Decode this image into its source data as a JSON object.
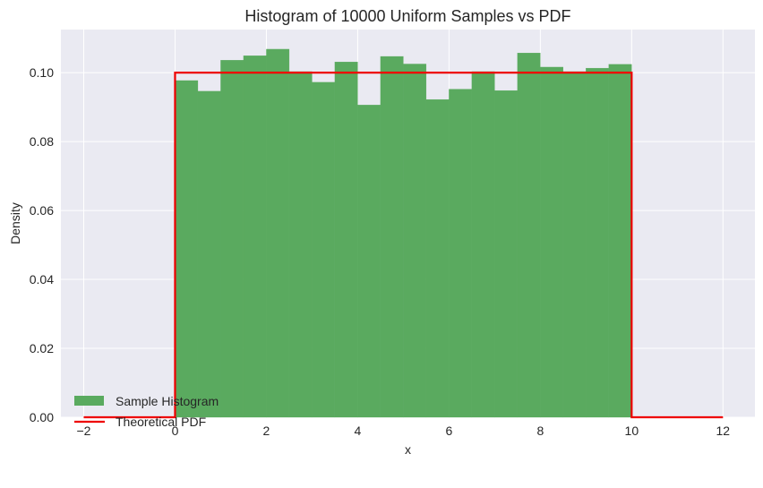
{
  "chart_data": {
    "type": "bar",
    "title": "Histogram of 10000 Uniform Samples vs PDF",
    "xlabel": "x",
    "ylabel": "Density",
    "xlim": [
      -2.5,
      12.7
    ],
    "ylim": [
      0.0,
      0.1125
    ],
    "xticks": [
      -2,
      0,
      2,
      4,
      6,
      8,
      10,
      12
    ],
    "xtick_labels": [
      "−2",
      "0",
      "2",
      "4",
      "6",
      "8",
      "10",
      "12"
    ],
    "yticks": [
      0.0,
      0.02,
      0.04,
      0.06,
      0.08,
      0.1
    ],
    "ytick_labels": [
      "0.00",
      "0.02",
      "0.04",
      "0.06",
      "0.08",
      "0.10"
    ],
    "grid": true,
    "legend_position": "lower left",
    "series": [
      {
        "name": "Sample Histogram",
        "type": "histogram",
        "color": "#4da64d",
        "alpha": 0.9,
        "bin_edges": [
          0.0,
          0.5,
          1.0,
          1.5,
          2.0,
          2.5,
          3.0,
          3.5,
          4.0,
          4.5,
          5.0,
          5.5,
          6.0,
          6.5,
          7.0,
          7.5,
          8.0,
          8.5,
          9.0,
          9.5,
          10.0
        ],
        "values": [
          0.0977,
          0.0946,
          0.1036,
          0.1049,
          0.1068,
          0.1003,
          0.0972,
          0.1031,
          0.0906,
          0.1047,
          0.1025,
          0.0922,
          0.0952,
          0.1003,
          0.0948,
          0.1057,
          0.1016,
          0.1003,
          0.1013,
          0.1024
        ]
      },
      {
        "name": "Theoretical PDF",
        "type": "line",
        "color": "#ee0000",
        "x": [
          -2,
          0,
          0,
          10,
          10,
          12
        ],
        "y": [
          0.0,
          0.0,
          0.1,
          0.1,
          0.0,
          0.0
        ]
      }
    ]
  },
  "legend": {
    "items": [
      {
        "label": "Sample Histogram"
      },
      {
        "label": "Theoretical PDF"
      }
    ]
  },
  "colors": {
    "axes_bg": "#eaeaf2",
    "grid": "#ffffff",
    "bar": "#5aaa5f",
    "pdf_line": "#ee0000"
  }
}
